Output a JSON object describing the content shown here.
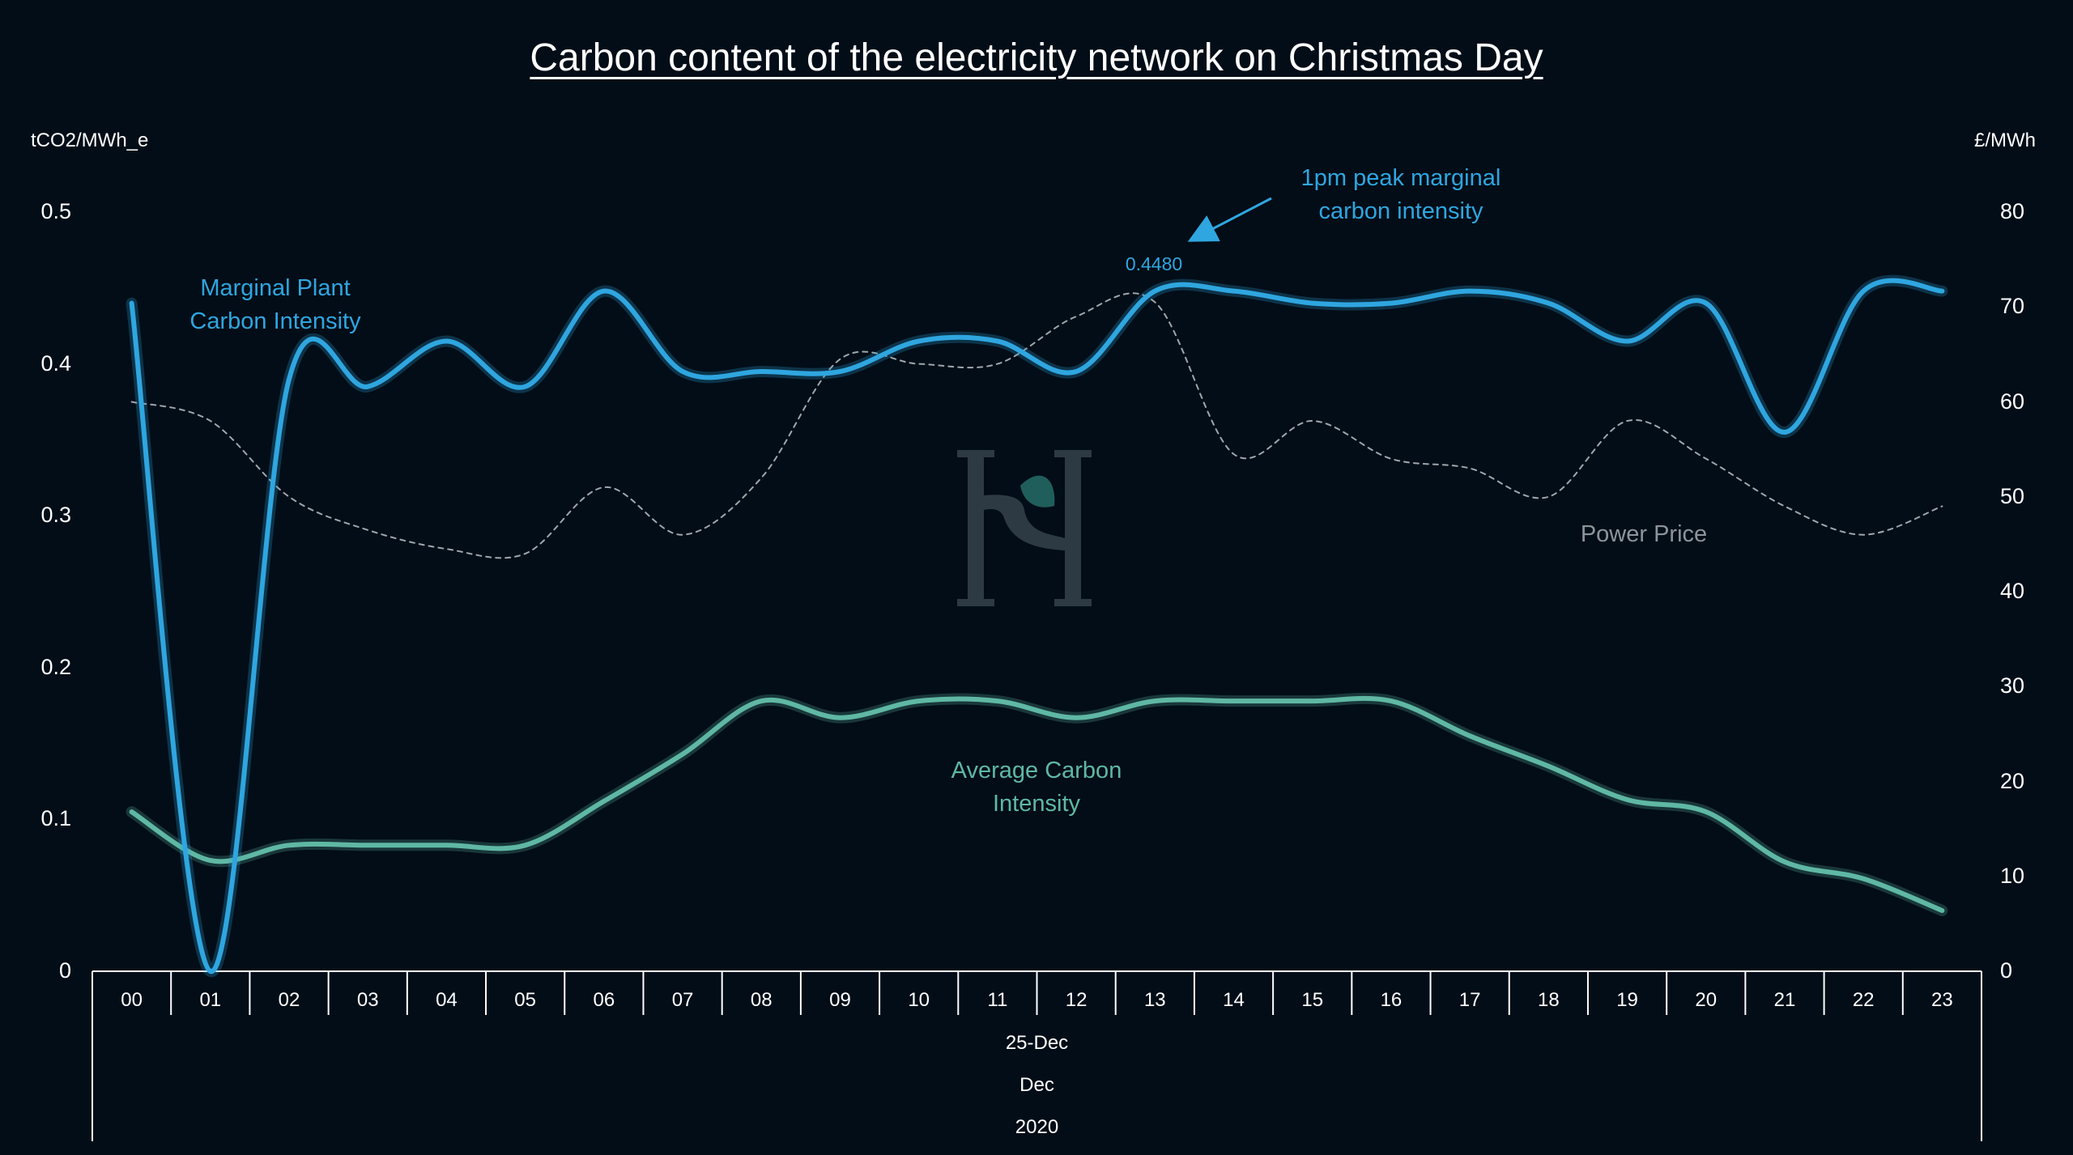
{
  "chart_data": {
    "type": "line",
    "title": "Carbon content of the electricity network on Christmas Day",
    "y_left_label": "tCO2/MWh_e",
    "y_right_label": "£/MWh",
    "y_left_ticks": [
      "0.5",
      "0.4",
      "0.3",
      "0.2",
      "0.1",
      "0"
    ],
    "y_right_ticks": [
      "80",
      "70",
      "60",
      "50",
      "40",
      "30",
      "20",
      "10",
      "0"
    ],
    "ylim_left": [
      0,
      0.5
    ],
    "ylim_right": [
      0,
      80
    ],
    "categories": [
      "00",
      "01",
      "02",
      "03",
      "04",
      "05",
      "06",
      "07",
      "08",
      "09",
      "10",
      "11",
      "12",
      "13",
      "14",
      "15",
      "16",
      "17",
      "18",
      "19",
      "20",
      "21",
      "22",
      "23"
    ],
    "x_group_labels": [
      "25-Dec",
      "Dec",
      "2020"
    ],
    "series": [
      {
        "name": "Marginal Plant Carbon Intensity",
        "axis": "left",
        "color": "#2fa6e0",
        "values": [
          0.44,
          0.0,
          0.39,
          0.385,
          0.415,
          0.385,
          0.448,
          0.395,
          0.395,
          0.395,
          0.415,
          0.415,
          0.395,
          0.448,
          0.448,
          0.44,
          0.44,
          0.448,
          0.44,
          0.415,
          0.44,
          0.355,
          0.448,
          0.448
        ]
      },
      {
        "name": "Average Carbon Intensity",
        "axis": "left",
        "color": "#5fb8a4",
        "values": [
          0.105,
          0.073,
          0.083,
          0.083,
          0.083,
          0.083,
          0.112,
          0.143,
          0.178,
          0.167,
          0.178,
          0.178,
          0.167,
          0.178,
          0.178,
          0.178,
          0.178,
          0.155,
          0.135,
          0.113,
          0.105,
          0.072,
          0.061,
          0.04
        ]
      },
      {
        "name": "Power Price",
        "axis": "right",
        "color": "#a0a6ab",
        "dashed": true,
        "values": [
          60,
          58,
          50,
          46.5,
          44.5,
          44,
          51,
          46,
          52,
          64.5,
          64,
          64,
          69,
          70.5,
          54.5,
          58,
          54,
          53,
          50,
          58,
          54,
          49,
          46,
          49
        ]
      }
    ],
    "annotations": {
      "marginal_label": [
        "Marginal Plant",
        "Carbon Intensity"
      ],
      "average_label": [
        "Average Carbon",
        "Intensity"
      ],
      "price_label": "Power Price",
      "peak_note": [
        "1pm peak marginal",
        "carbon intensity"
      ],
      "peak_value": "0.4480"
    },
    "grid": false,
    "legend": "none"
  },
  "watermark": {
    "text": "H",
    "description_colors": {
      "letters": "#3d4a52",
      "leaf": "#2a7a72"
    }
  }
}
